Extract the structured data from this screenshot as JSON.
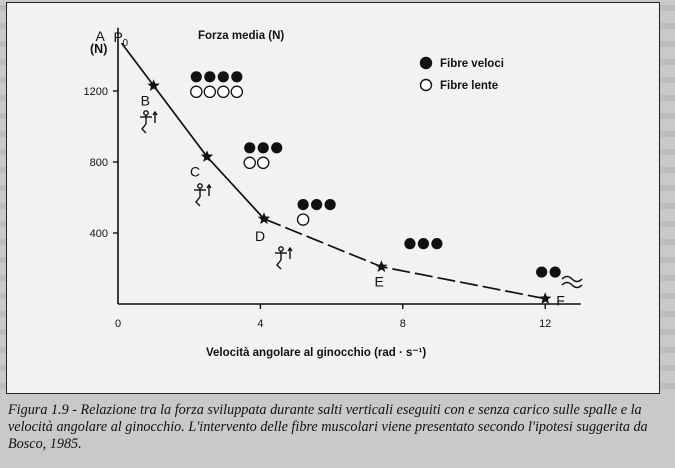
{
  "figure": {
    "caption": "Figura 1.9 - Relazione tra la forza sviluppata durante salti verticali eseguiti con e senza carico sulle spalle e la velocità angolare al ginocchio. L'intervento delle fibre muscolari viene presentato secondo l'ipotesi suggerita da Bosco, 1985."
  },
  "chart_data": {
    "type": "line",
    "title": "Forza media (N)",
    "ylabel": "(N)",
    "xlabel": "Velocità angolare al ginocchio (rad · s⁻¹)",
    "xlim": [
      0,
      13
    ],
    "ylim": [
      0,
      1500
    ],
    "xticks": [
      "0",
      "4",
      "8",
      "12"
    ],
    "yticks": [
      "400",
      "800",
      "1200"
    ],
    "grid": false,
    "legend": {
      "placement": "top-right",
      "entries": [
        {
          "symbol": "filled-circle",
          "label": "Fibre veloci"
        },
        {
          "symbol": "open-circle",
          "label": "Fibre lente"
        }
      ]
    },
    "points": [
      {
        "label": "A",
        "sub": "P0",
        "x": 0.1,
        "y": 1470
      },
      {
        "label": "B",
        "x": 1.0,
        "y": 1230
      },
      {
        "label": "C",
        "x": 2.5,
        "y": 830
      },
      {
        "label": "D",
        "x": 4.1,
        "y": 480
      },
      {
        "label": "E",
        "x": 7.4,
        "y": 210
      },
      {
        "label": "F",
        "x": 12.0,
        "y": 30
      }
    ],
    "segments": [
      {
        "from": 0,
        "to": 3,
        "style": "solid"
      },
      {
        "from": 3,
        "to": 5,
        "style": "dashed"
      }
    ],
    "fiber_groups": [
      {
        "x": 2.2,
        "y": 1280,
        "fast": 4,
        "slow": 4
      },
      {
        "x": 3.7,
        "y": 880,
        "fast": 3,
        "slow": 2
      },
      {
        "x": 5.2,
        "y": 560,
        "fast": 3,
        "slow": 1
      },
      {
        "x": 8.2,
        "y": 340,
        "fast": 3,
        "slow": 0
      },
      {
        "x": 11.9,
        "y": 180,
        "fast": 2,
        "slow": 0
      }
    ]
  }
}
